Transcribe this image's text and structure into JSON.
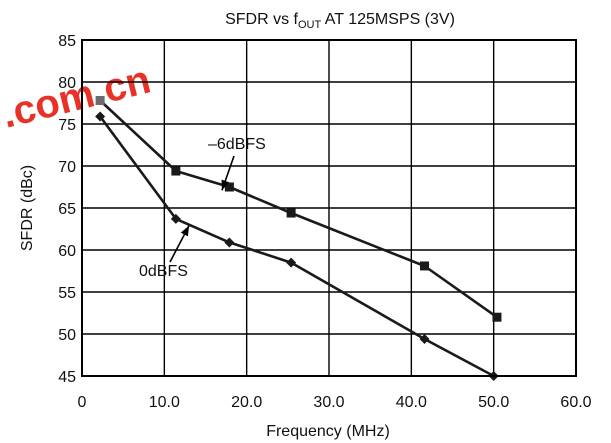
{
  "watermark": {
    "text": ".com.cn",
    "color": "#e8281c"
  },
  "chart_data": {
    "type": "line",
    "title_main": "SFDR vs f",
    "title_sub": "OUT",
    "title_rest": " AT 125MSPS (3V)",
    "xlabel": "Frequency (MHz)",
    "ylabel": "SFDR (dBc)",
    "xlim": [
      0,
      60
    ],
    "ylim": [
      45,
      85
    ],
    "x_ticks": [
      {
        "value": 0,
        "label": "0"
      },
      {
        "value": 10,
        "label": "10.0"
      },
      {
        "value": 20,
        "label": "20.0"
      },
      {
        "value": 30,
        "label": "30.0"
      },
      {
        "value": 40,
        "label": "40.0"
      },
      {
        "value": 50,
        "label": "50.0"
      },
      {
        "value": 60,
        "label": "60.0"
      }
    ],
    "y_ticks": [
      {
        "value": 45,
        "label": "45"
      },
      {
        "value": 50,
        "label": "50"
      },
      {
        "value": 55,
        "label": "55"
      },
      {
        "value": 60,
        "label": "60"
      },
      {
        "value": 65,
        "label": "65"
      },
      {
        "value": 70,
        "label": "70"
      },
      {
        "value": 75,
        "label": "75"
      },
      {
        "value": 80,
        "label": "80"
      },
      {
        "value": 85,
        "label": "85"
      }
    ],
    "grid": true,
    "series": [
      {
        "name": "–6dBFS",
        "marker": "square",
        "color": "#1a1a1a",
        "points": [
          {
            "x": 2.2,
            "y": 77.8
          },
          {
            "x": 11.4,
            "y": 69.4
          },
          {
            "x": 17.9,
            "y": 67.5
          },
          {
            "x": 25.4,
            "y": 64.4
          },
          {
            "x": 41.6,
            "y": 58.1
          },
          {
            "x": 50.4,
            "y": 52.0
          }
        ]
      },
      {
        "name": "0dBFS",
        "marker": "diamond",
        "color": "#1a1a1a",
        "points": [
          {
            "x": 2.2,
            "y": 75.9
          },
          {
            "x": 11.4,
            "y": 63.7
          },
          {
            "x": 17.9,
            "y": 60.9
          },
          {
            "x": 25.4,
            "y": 58.5
          },
          {
            "x": 41.6,
            "y": 49.4
          },
          {
            "x": 50.0,
            "y": 45.0
          }
        ]
      }
    ],
    "annotations": [
      {
        "series": "–6dBFS",
        "label": "–6dBFS",
        "target_x": 17.0,
        "target_y": 67.1
      },
      {
        "series": "0dBFS",
        "label": "0dBFS",
        "target_x": 13.0,
        "target_y": 62.9
      }
    ]
  }
}
